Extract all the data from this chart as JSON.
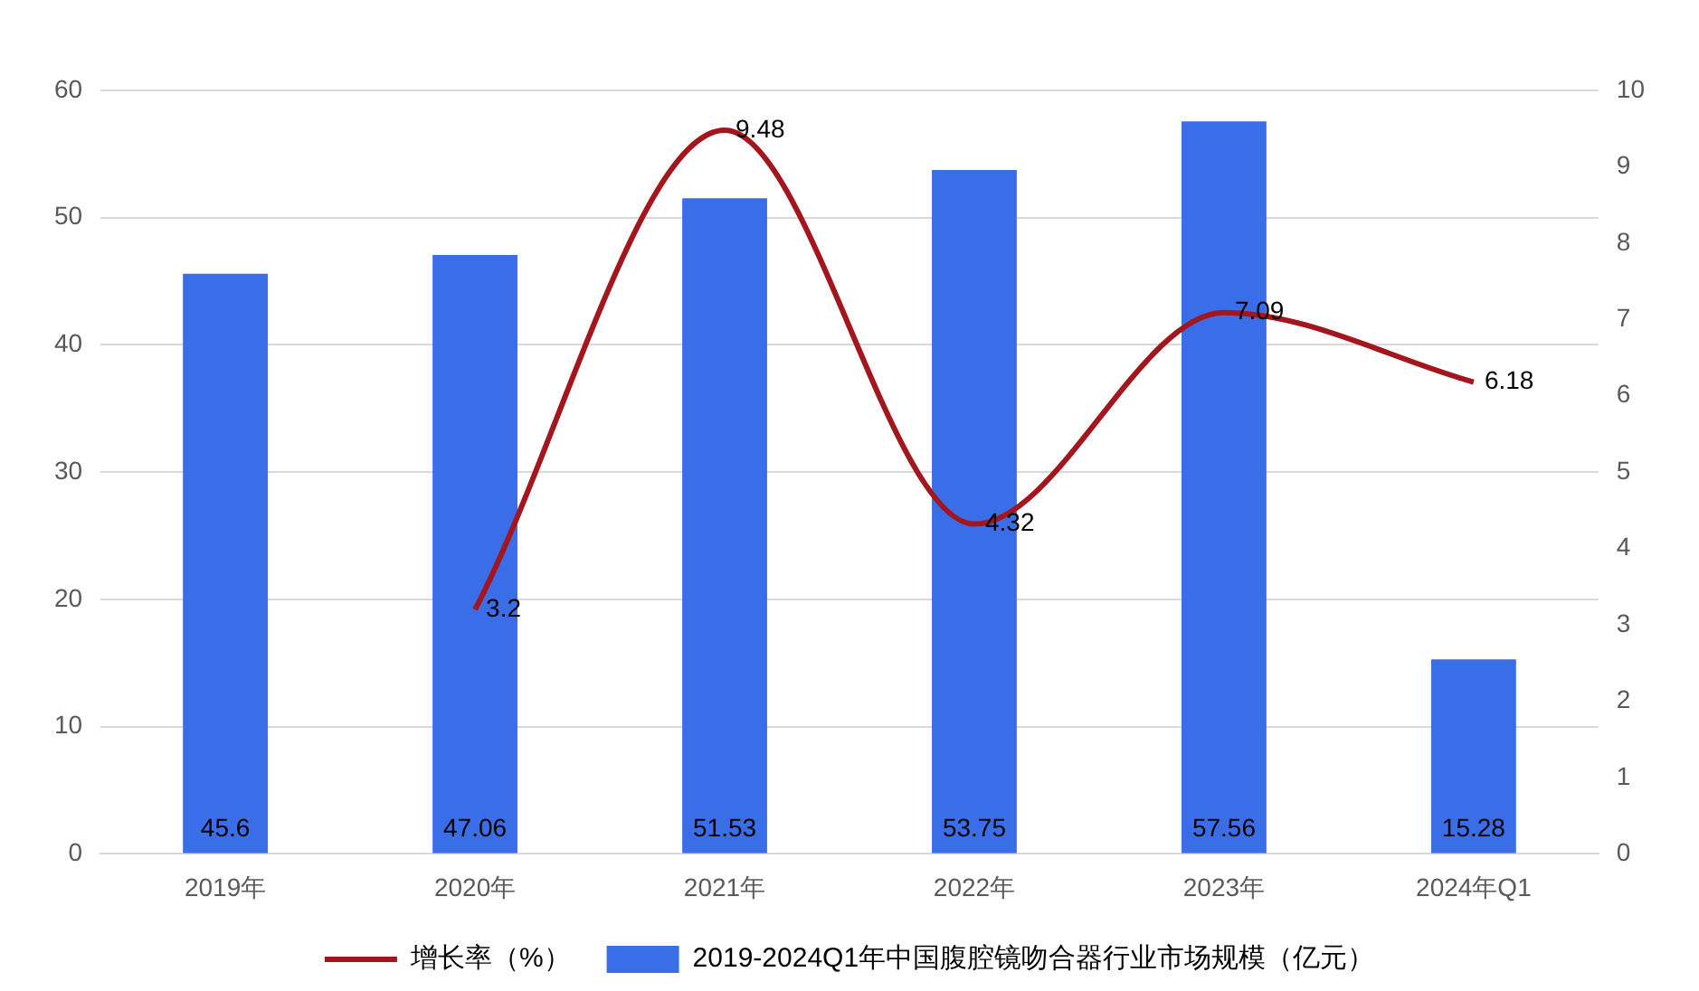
{
  "chart_data": {
    "type": "bar",
    "categories": [
      "2019年",
      "2020年",
      "2021年",
      "2022年",
      "2023年",
      "2024年Q1"
    ],
    "series": [
      {
        "name": "2019-2024Q1年中国腹腔镜吻合器行业市场规模（亿元）",
        "color": "#3a6ee8",
        "values": [
          45.6,
          47.06,
          51.53,
          53.75,
          57.56,
          15.28
        ]
      },
      {
        "name": "增长率（%）",
        "type": "line",
        "axis": "y2",
        "color": "#a3161d",
        "values": [
          null,
          3.2,
          9.48,
          4.32,
          7.09,
          6.18
        ]
      }
    ],
    "ylim": [
      0,
      60
    ],
    "yticks": [
      0,
      10,
      20,
      30,
      40,
      50,
      60
    ],
    "y2lim": [
      0,
      10
    ],
    "y2ticks": [
      0,
      1,
      2,
      3,
      4,
      5,
      6,
      7,
      8,
      9,
      10
    ],
    "grid": "y",
    "legend": "bottom",
    "marker": "none",
    "data_labels": true
  }
}
